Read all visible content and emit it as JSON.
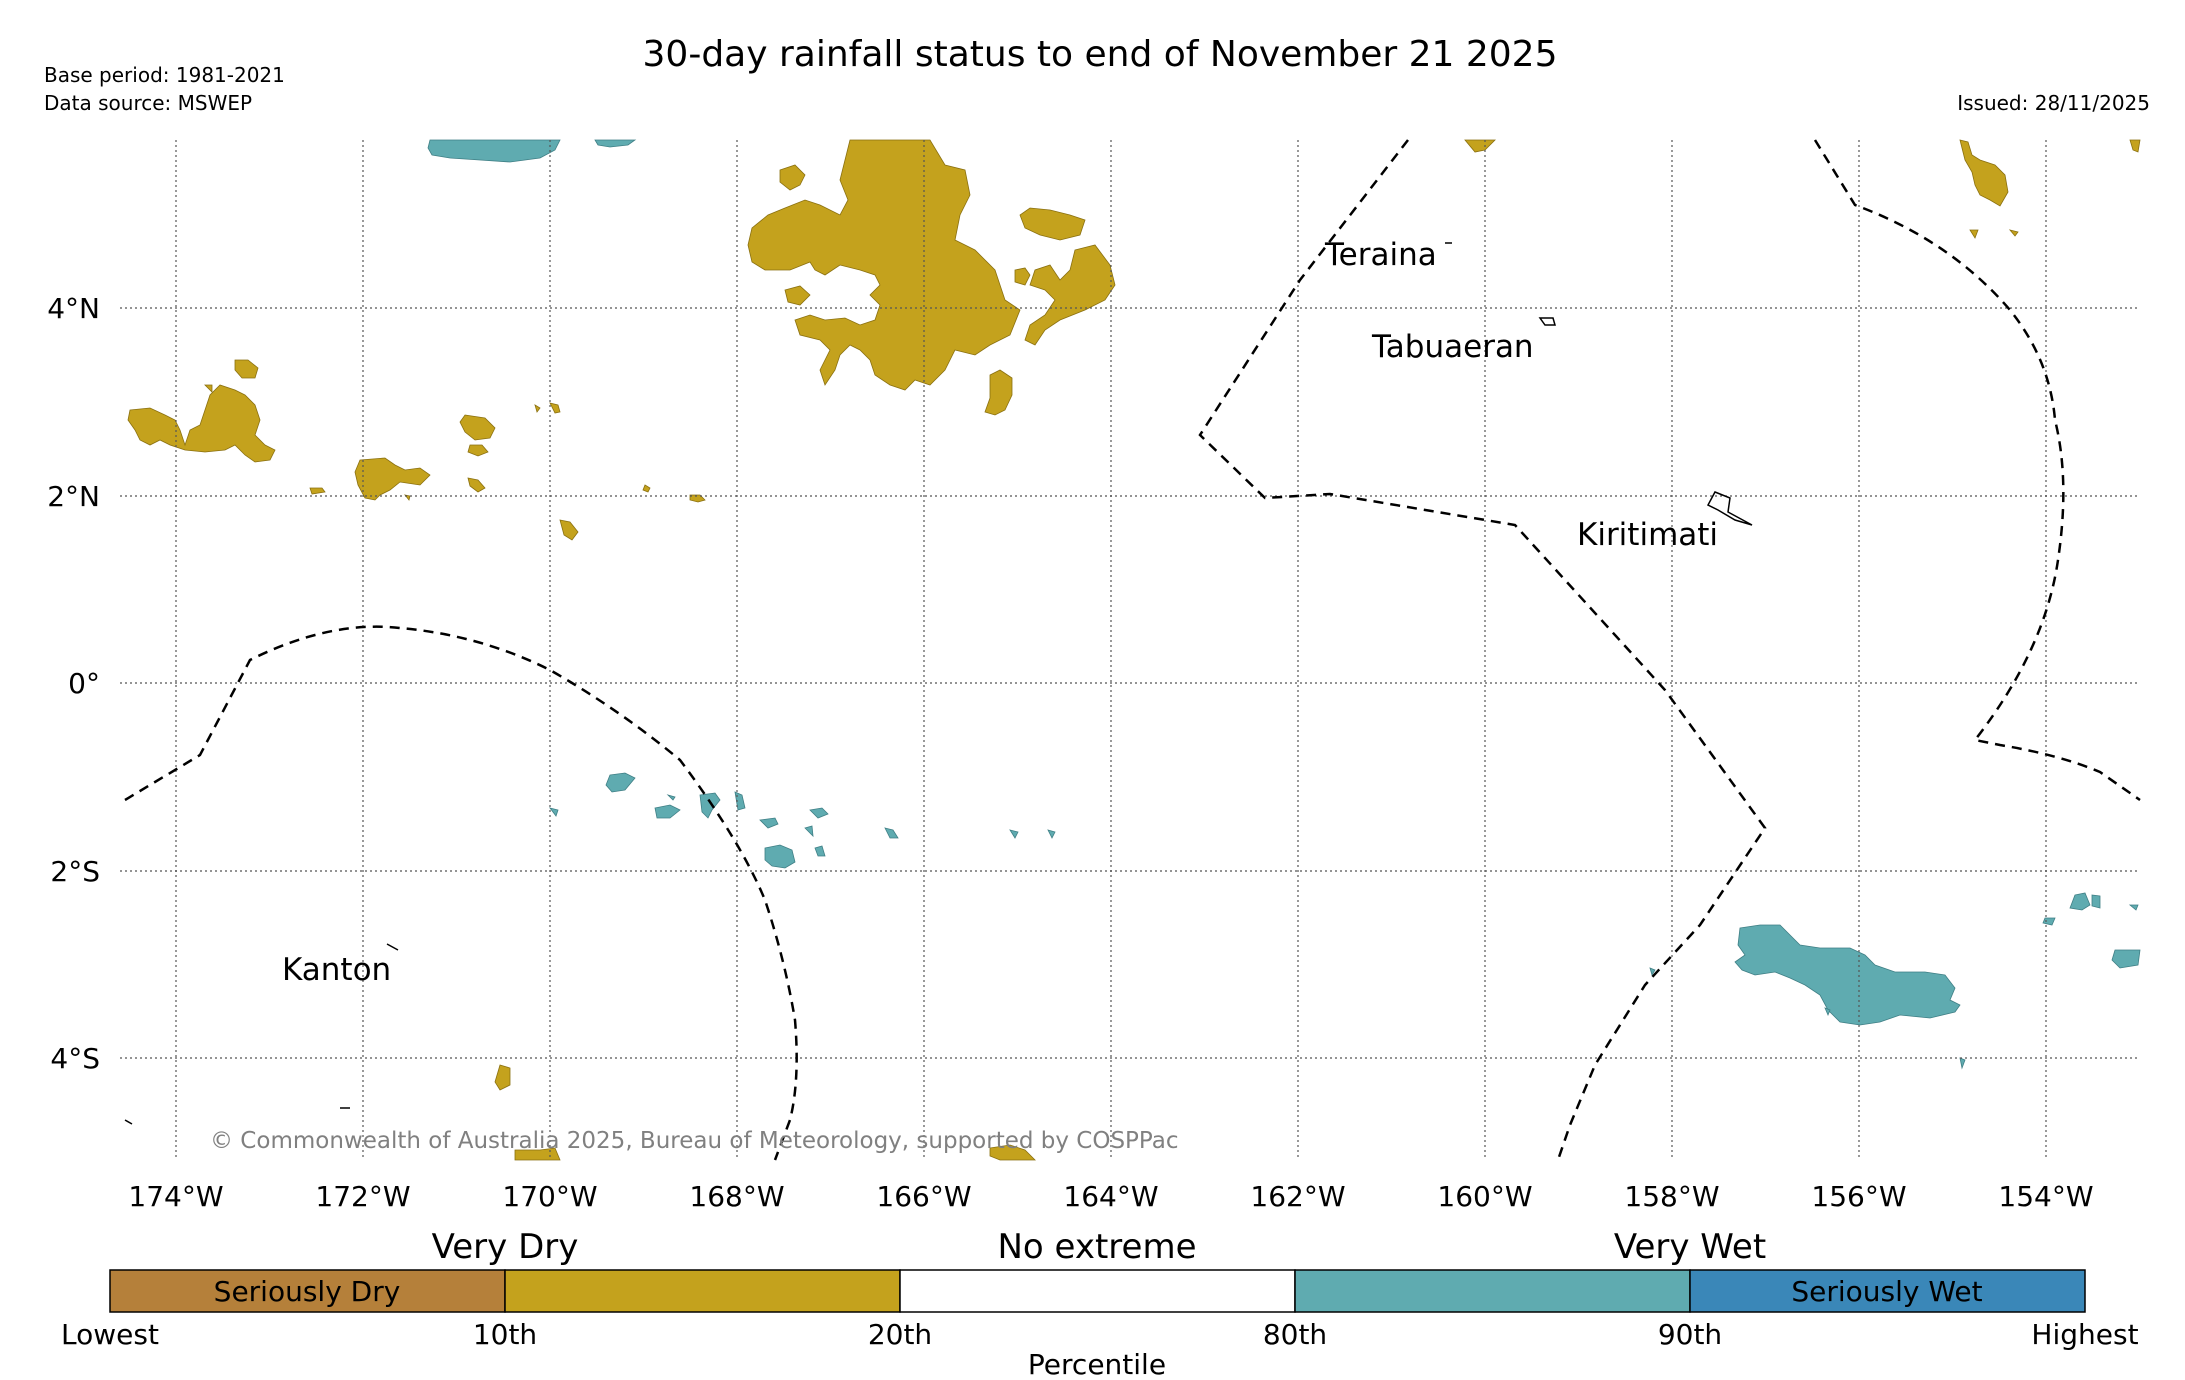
{
  "header": {
    "title": "30-day rainfall status to end of November 21 2025",
    "base_period": "Base period: 1981-2021",
    "data_source": "Data source: MSWEP",
    "issued": "Issued: 28/11/2025"
  },
  "map": {
    "lat_labels": [
      "4°N",
      "2°N",
      "0°",
      "2°S",
      "4°S"
    ],
    "lon_labels": [
      "174°W",
      "172°W",
      "170°W",
      "168°W",
      "166°W",
      "164°W",
      "162°W",
      "160°W",
      "158°W",
      "156°W",
      "154°W"
    ],
    "places": [
      "Teraina",
      "Tabuaeran",
      "Kiritimati",
      "Kanton"
    ],
    "copyright": "© Commonwealth of Australia 2025, Bureau of Meteorology, supported by COSPPac"
  },
  "legend": {
    "group_labels": [
      "Very Dry",
      "No extreme",
      "Very Wet"
    ],
    "box_labels": [
      "Seriously Dry",
      "",
      "",
      "",
      "Seriously Wet"
    ],
    "box_colors": [
      "#b5803a",
      "#c4a21d",
      "#ffffff",
      "#5fabb0",
      "#3a87b8"
    ],
    "tick_labels": [
      "Lowest",
      "10th",
      "20th",
      "80th",
      "90th",
      "Highest"
    ],
    "axis_label": "Percentile"
  },
  "colors": {
    "dry": "#c4a21d",
    "wet": "#5fabb0"
  }
}
